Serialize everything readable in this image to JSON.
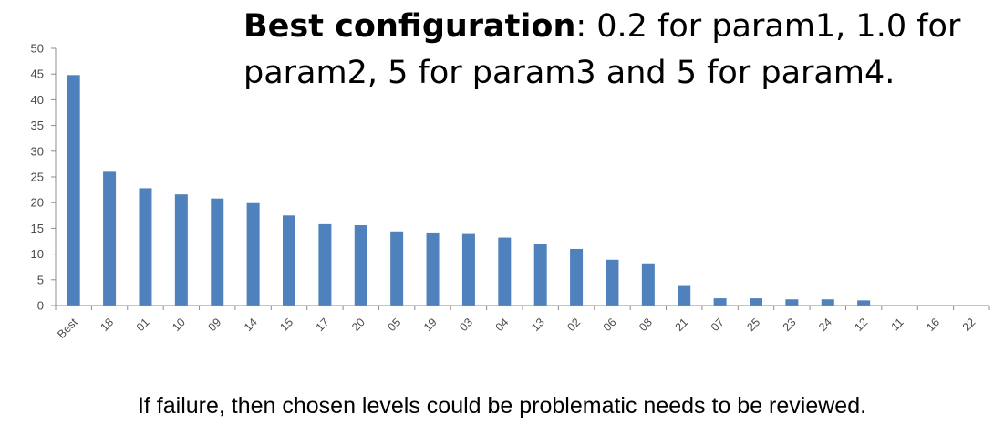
{
  "title": {
    "bold_part": "Best configuration",
    "rest": ": 0.2 for param1, 1.0 for param2, 5 for param3 and 5 for param4."
  },
  "caption": "If failure, then chosen levels could be problematic needs to be reviewed.",
  "colors": {
    "bar": "#4f81bd",
    "axis": "#8c8c8c"
  },
  "chart_data": {
    "type": "bar",
    "categories": [
      "Best",
      "18",
      "01",
      "10",
      "09",
      "14",
      "15",
      "17",
      "20",
      "05",
      "19",
      "03",
      "04",
      "13",
      "02",
      "06",
      "08",
      "21",
      "07",
      "25",
      "23",
      "24",
      "12",
      "11",
      "16",
      "22"
    ],
    "values": [
      44.8,
      26,
      22.8,
      21.6,
      20.8,
      19.9,
      17.5,
      15.8,
      15.6,
      14.4,
      14.2,
      13.9,
      13.2,
      12,
      11,
      8.9,
      8.2,
      3.8,
      1.4,
      1.4,
      1.2,
      1.2,
      1,
      0,
      0,
      0
    ],
    "yticks": [
      0,
      5,
      10,
      15,
      20,
      25,
      30,
      35,
      40,
      45,
      50
    ],
    "ylim": [
      0,
      50
    ],
    "xlabel": "",
    "ylabel": "",
    "grid": false,
    "legend": "none"
  }
}
